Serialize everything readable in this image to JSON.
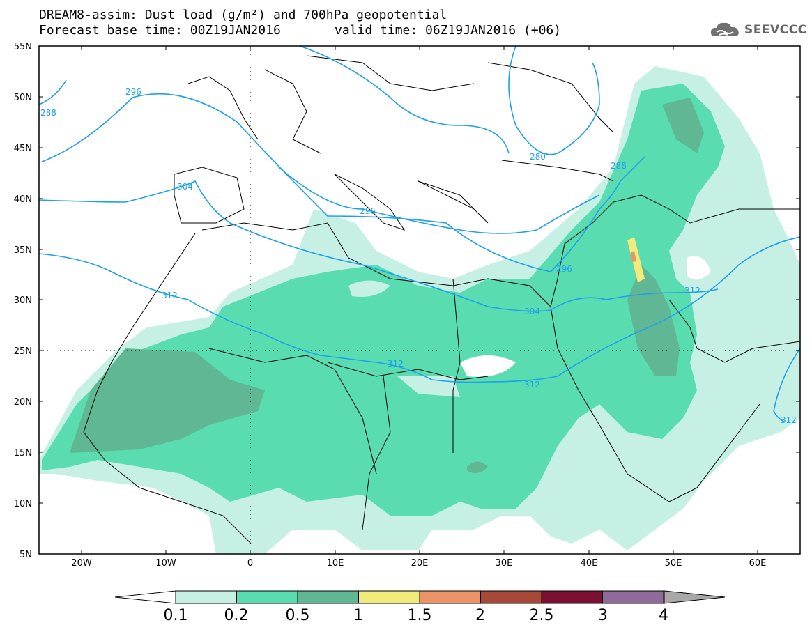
{
  "header": {
    "title_line1": "DREAM8-assim: Dust load (g/m²) and 700hPa geopotential",
    "title_line2a": "Forecast base time: 00Z19JAN2016",
    "title_line2b": "valid time: 06Z19JAN2016 (+06)",
    "logo_text": "SEEVCCC"
  },
  "axes": {
    "lat_labels": [
      "55N",
      "50N",
      "45N",
      "40N",
      "35N",
      "30N",
      "25N",
      "20N",
      "15N",
      "10N",
      "5N"
    ],
    "lon_labels": [
      "20W",
      "10W",
      "0",
      "10E",
      "20E",
      "30E",
      "40E",
      "50E",
      "60E"
    ]
  },
  "contours": {
    "labels": [
      "296",
      "288",
      "304",
      "296",
      "280",
      "288",
      "296",
      "312",
      "312",
      "312",
      "304",
      "312",
      "312"
    ]
  },
  "legend": {
    "values": [
      "0.1",
      "0.2",
      "0.5",
      "1",
      "1.5",
      "2",
      "2.5",
      "3",
      "4"
    ],
    "colors": [
      "#c6f0e4",
      "#58dcb0",
      "#5fb893",
      "#f3ea7c",
      "#ec9468",
      "#a84838",
      "#7b1030",
      "#8f6a9a"
    ],
    "under_color": "#ffffff",
    "over_color": "#a8a8a8"
  }
}
